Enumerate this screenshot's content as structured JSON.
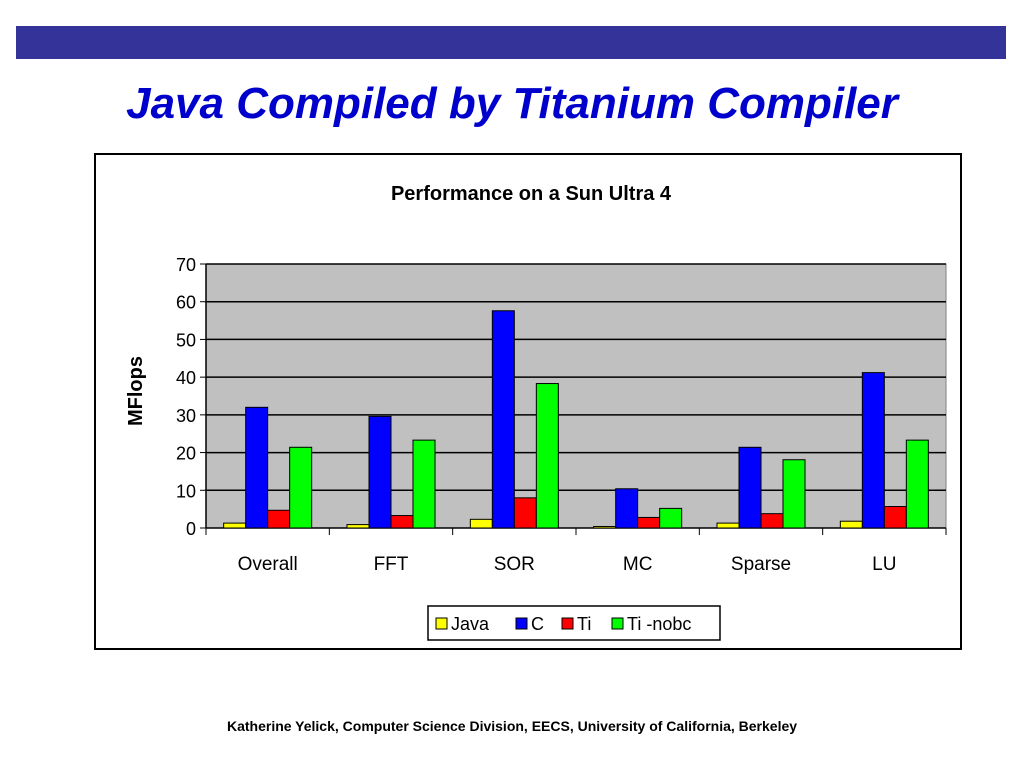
{
  "slide": {
    "title": "Java Compiled by Titanium Compiler",
    "footer": "Katherine Yelick, Computer Science Division, EECS, University of California, Berkeley",
    "band_color": "#333399",
    "title_color": "#0000cc"
  },
  "chart_data": {
    "type": "bar",
    "title": "Performance on a Sun Ultra 4",
    "xlabel": "",
    "ylabel": "MFlops",
    "ylim": [
      0,
      70
    ],
    "yticks": [
      0,
      10,
      20,
      30,
      40,
      50,
      60,
      70
    ],
    "grid": true,
    "plot_background": "#c0c0c0",
    "legend_position": "bottom",
    "categories": [
      "Overall",
      "FFT",
      "SOR",
      "MC",
      "Sparse",
      "LU"
    ],
    "series": [
      {
        "name": "Java",
        "color": "#ffff00",
        "values": [
          1.3,
          0.9,
          2.3,
          0.4,
          1.3,
          1.8
        ]
      },
      {
        "name": "C",
        "color": "#0000ff",
        "values": [
          32,
          29.6,
          57.6,
          10.4,
          21.4,
          41.2
        ]
      },
      {
        "name": "Ti",
        "color": "#ff0000",
        "values": [
          4.7,
          3.3,
          8.0,
          2.8,
          3.8,
          5.7
        ]
      },
      {
        "name": "Ti -nobc",
        "color": "#00ff00",
        "values": [
          21.4,
          23.3,
          38.3,
          5.2,
          18.1,
          23.3
        ]
      }
    ]
  }
}
